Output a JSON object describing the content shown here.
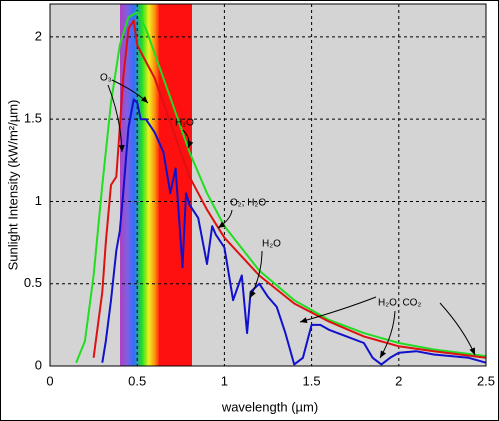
{
  "chart_data": {
    "type": "line",
    "xlabel": "wavelength (µm)",
    "ylabel": "Sunlight Intensity (kW/m²/µm)",
    "xlim": [
      0,
      2.5
    ],
    "ylim": [
      0,
      2.2
    ],
    "xticks": [
      0,
      0.5,
      1,
      1.5,
      2,
      2.5
    ],
    "yticks": [
      0,
      0.5,
      1,
      1.5,
      2
    ],
    "grid": true,
    "series": [
      {
        "color": "#22dd22",
        "x": [
          0.15,
          0.2,
          0.25,
          0.3,
          0.35,
          0.4,
          0.45,
          0.5,
          0.55,
          0.6,
          0.7,
          0.8,
          0.9,
          1.0,
          1.2,
          1.4,
          1.6,
          1.8,
          2.0,
          2.2,
          2.5
        ],
        "values": [
          0.02,
          0.15,
          0.55,
          1.1,
          1.6,
          1.95,
          2.12,
          2.15,
          2.05,
          1.9,
          1.6,
          1.3,
          1.05,
          0.85,
          0.58,
          0.4,
          0.28,
          0.2,
          0.14,
          0.1,
          0.06
        ]
      },
      {
        "color": "#dd1111",
        "x": [
          0.25,
          0.3,
          0.32,
          0.35,
          0.38,
          0.4,
          0.42,
          0.45,
          0.48,
          0.5,
          0.55,
          0.6,
          0.7,
          0.8,
          0.9,
          1.0,
          1.2,
          1.4,
          1.6,
          1.8,
          2.0,
          2.2,
          2.5
        ],
        "values": [
          0.05,
          0.45,
          0.75,
          1.1,
          1.15,
          1.45,
          1.75,
          2.05,
          2.1,
          1.95,
          1.85,
          1.75,
          1.45,
          1.15,
          0.95,
          0.78,
          0.55,
          0.38,
          0.27,
          0.18,
          0.12,
          0.09,
          0.05
        ]
      },
      {
        "color": "#1111cc",
        "x": [
          0.3,
          0.32,
          0.35,
          0.38,
          0.4,
          0.42,
          0.45,
          0.48,
          0.5,
          0.52,
          0.55,
          0.6,
          0.65,
          0.69,
          0.72,
          0.76,
          0.78,
          0.8,
          0.85,
          0.9,
          0.93,
          0.95,
          1.0,
          1.05,
          1.1,
          1.13,
          1.15,
          1.2,
          1.25,
          1.3,
          1.35,
          1.4,
          1.45,
          1.5,
          1.55,
          1.6,
          1.7,
          1.8,
          1.85,
          1.9,
          1.95,
          2.0,
          2.1,
          2.2,
          2.3,
          2.4,
          2.5
        ],
        "values": [
          0.02,
          0.15,
          0.4,
          0.7,
          0.82,
          1.05,
          1.45,
          1.62,
          1.6,
          1.5,
          1.5,
          1.42,
          1.3,
          1.05,
          1.2,
          0.6,
          1.05,
          0.98,
          0.9,
          0.62,
          0.85,
          0.8,
          0.72,
          0.4,
          0.55,
          0.2,
          0.45,
          0.5,
          0.42,
          0.36,
          0.2,
          0.01,
          0.05,
          0.25,
          0.25,
          0.22,
          0.18,
          0.14,
          0.05,
          0.01,
          0.05,
          0.08,
          0.09,
          0.07,
          0.06,
          0.05,
          0.02
        ]
      }
    ],
    "annotations": [
      "O₃",
      "H₂O",
      "O₂, H₂O",
      "H₂O",
      "H₂O, CO₂"
    ]
  }
}
